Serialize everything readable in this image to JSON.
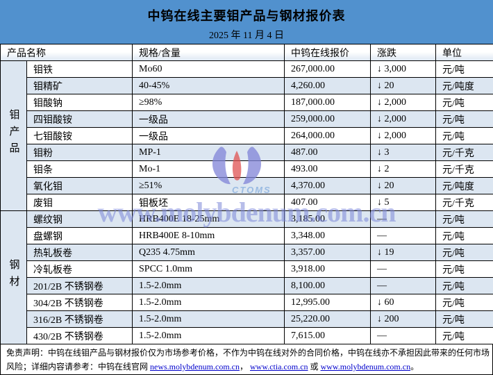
{
  "title": "中钨在线主要钼产品与钢材报价表",
  "date": "2025 年 11 月 4 日",
  "columns": [
    "产品名称",
    "规格/含量",
    "中钨在线报价",
    "涨跌",
    "单位"
  ],
  "groups": [
    {
      "label": "钼产品",
      "rows": [
        {
          "name": "钼铁",
          "spec": "Mo60",
          "price": "267,000.00",
          "change": "↓ 3,000",
          "unit": "元/吨"
        },
        {
          "name": "钼精矿",
          "spec": "40-45%",
          "price": "4,260.00",
          "change": "↓ 20",
          "unit": "元/吨度"
        },
        {
          "name": "钼酸钠",
          "spec": "≥98%",
          "price": "187,000.00",
          "change": "↓ 2,000",
          "unit": "元/吨"
        },
        {
          "name": "四钼酸铵",
          "spec": "一级品",
          "price": "259,000.00",
          "change": "↓ 2,000",
          "unit": "元/吨"
        },
        {
          "name": "七钼酸铵",
          "spec": "一级品",
          "price": "264,000.00",
          "change": "↓ 2,000",
          "unit": "元/吨"
        },
        {
          "name": "钼粉",
          "spec": "MP-1",
          "price": "487.00",
          "change": "↓ 3",
          "unit": "元/千克"
        },
        {
          "name": "钼条",
          "spec": "Mo-1",
          "price": "493.00",
          "change": "↓ 2",
          "unit": "元/千克"
        },
        {
          "name": "氧化钼",
          "spec": "≥51%",
          "price": "4,370.00",
          "change": "↓ 20",
          "unit": "元/吨度"
        },
        {
          "name": "废钼",
          "spec": "钼板坯",
          "price": "407.00",
          "change": "↓ 5",
          "unit": "元/千克"
        }
      ]
    },
    {
      "label": "钢材",
      "rows": [
        {
          "name": "螺纹钢",
          "spec": "HRB400E 18-25mm",
          "price": "3,185.00",
          "change": "—",
          "unit": "元/吨"
        },
        {
          "name": "盘螺钢",
          "spec": "HRB400E 8-10mm",
          "price": "3,348.00",
          "change": "—",
          "unit": "元/吨"
        },
        {
          "name": "热轧板卷",
          "spec": "Q235 4.75mm",
          "price": "3,357.00",
          "change": "↓ 19",
          "unit": "元/吨"
        },
        {
          "name": "冷轧板卷",
          "spec": "SPCC 1.0mm",
          "price": "3,918.00",
          "change": "—",
          "unit": "元/吨"
        },
        {
          "name": "201/2B 不锈钢卷",
          "spec": "1.5-2.0mm",
          "price": "8,100.00",
          "change": "—",
          "unit": "元/吨"
        },
        {
          "name": "304/2B 不锈钢卷",
          "spec": "1.5-2.0mm",
          "price": "12,995.00",
          "change": "↓ 60",
          "unit": "元/吨"
        },
        {
          "name": "316/2B 不锈钢卷",
          "spec": "1.5-2.0mm",
          "price": "25,220.00",
          "change": "↓ 200",
          "unit": "元/吨"
        },
        {
          "name": "430/2B 不锈钢卷",
          "spec": "1.5-2.0mm",
          "price": "7,615.00",
          "change": "—",
          "unit": "元/吨"
        }
      ]
    }
  ],
  "watermark": {
    "logo_text": "CTOMS",
    "site": "www.molybdenum.com.cn"
  },
  "disclaimer": {
    "line1": "免责声明：中钨在线钼产品与钢材报价仅为市场参考价格，不作为中钨在线对外的合同价格，中钨在线亦不承担因此带来的任何市场",
    "line2_prefix": "风险；详细内容请参考：中钨在线官网 ",
    "links": [
      "news.molybdenum.com.cn",
      "www.ctia.com.cn",
      "www.molybdenum.com.cn"
    ],
    "sep1": "， ",
    "sep2": " 或 ",
    "suffix": "。"
  },
  "colors": {
    "banner": "#5191CE",
    "shaded": "#DCE6F1",
    "link": "#0000CC",
    "watermark": "#7D88D8",
    "logo_petal": "#8184D8",
    "logo_flame": "#E05252"
  }
}
